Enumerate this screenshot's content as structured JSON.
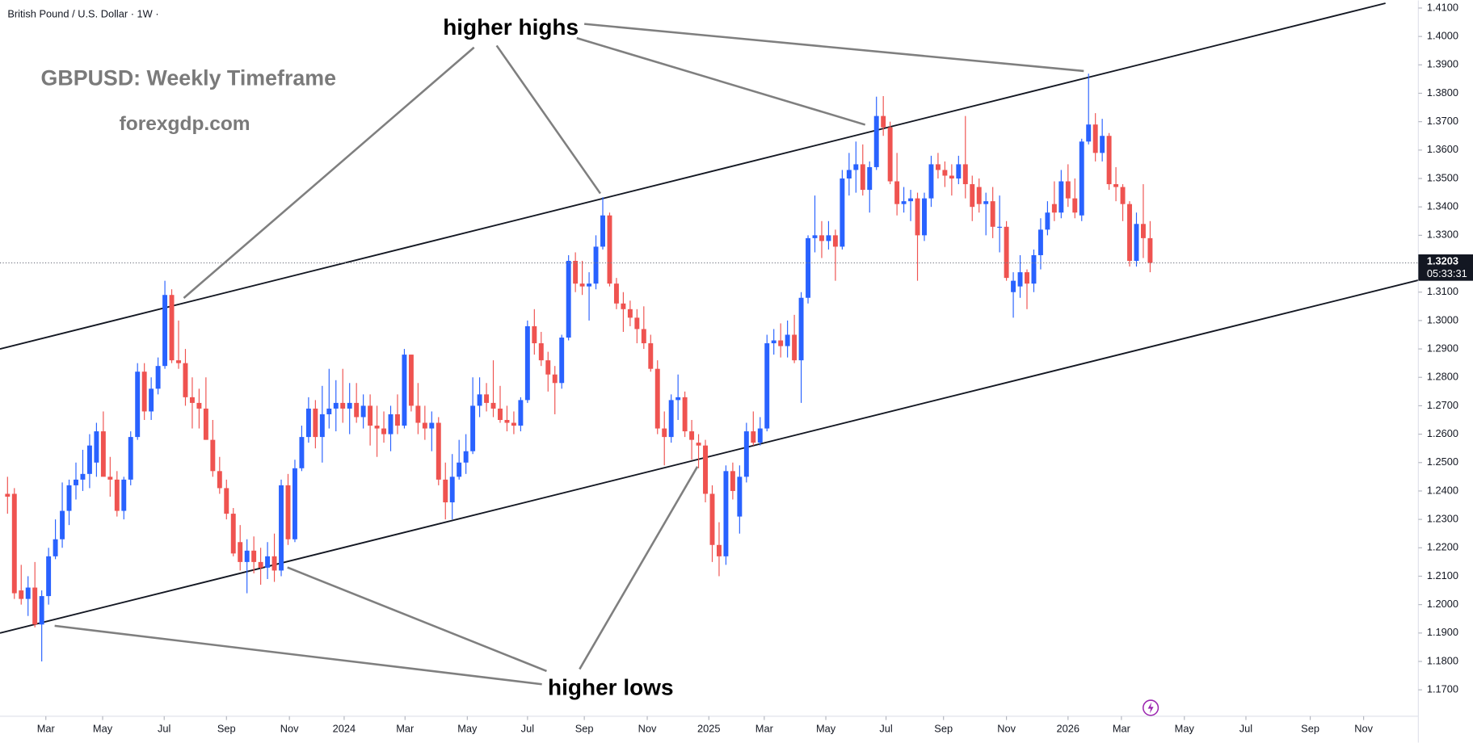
{
  "chart_data": {
    "type": "candlestick",
    "symbol": "British Pound / U.S. Dollar · 1W ·",
    "title": "GBPUSD: Weekly Timeframe",
    "subtitle": "forexgdp.com",
    "annotations": [
      "higher highs",
      "higher lows"
    ],
    "up_color": "#2962ff",
    "down_color": "#ef5350",
    "last_price": {
      "value": 1.3203,
      "label": "1.3203"
    },
    "countdown": "05:33:31",
    "trendlines": [
      {
        "points": [
          [
            -1.1,
            1.29
          ],
          [
            201.4,
            1.4117
          ]
        ]
      },
      {
        "points": [
          [
            -1.1,
            1.19
          ],
          [
            206.2,
            1.3142
          ]
        ]
      }
    ],
    "xlim": [
      -1.1,
      206.2
    ],
    "xticks": [
      {
        "value": 5.6,
        "label": "Mar"
      },
      {
        "value": 13.9,
        "label": "May"
      },
      {
        "value": 22.9,
        "label": "Jul"
      },
      {
        "value": 32,
        "label": "Sep"
      },
      {
        "value": 41.2,
        "label": "Nov"
      },
      {
        "value": 49.2,
        "label": "2024"
      },
      {
        "value": 58.1,
        "label": "Mar"
      },
      {
        "value": 67.2,
        "label": "May"
      },
      {
        "value": 76,
        "label": "Jul"
      },
      {
        "value": 84.3,
        "label": "Sep"
      },
      {
        "value": 93.5,
        "label": "Nov"
      },
      {
        "value": 102.5,
        "label": "2025"
      },
      {
        "value": 110.6,
        "label": "Mar"
      },
      {
        "value": 119.6,
        "label": "May"
      },
      {
        "value": 128.4,
        "label": "Jul"
      },
      {
        "value": 136.8,
        "label": "Sep"
      },
      {
        "value": 146,
        "label": "Nov"
      },
      {
        "value": 155,
        "label": "2026"
      },
      {
        "value": 162.8,
        "label": "Mar"
      },
      {
        "value": 172,
        "label": "May"
      },
      {
        "value": 181,
        "label": "Jul"
      },
      {
        "value": 190.4,
        "label": "Sep"
      },
      {
        "value": 198.2,
        "label": "Nov"
      }
    ],
    "ylim": [
      1.1607,
      1.4127
    ],
    "yticks": [
      {
        "value": 1.17,
        "label": "1.1700"
      },
      {
        "value": 1.18,
        "label": "1.1800"
      },
      {
        "value": 1.19,
        "label": "1.1900"
      },
      {
        "value": 1.2,
        "label": "1.2000"
      },
      {
        "value": 1.21,
        "label": "1.2100"
      },
      {
        "value": 1.22,
        "label": "1.2200"
      },
      {
        "value": 1.23,
        "label": "1.2300"
      },
      {
        "value": 1.24,
        "label": "1.2400"
      },
      {
        "value": 1.25,
        "label": "1.2500"
      },
      {
        "value": 1.26,
        "label": "1.2600"
      },
      {
        "value": 1.27,
        "label": "1.2700"
      },
      {
        "value": 1.28,
        "label": "1.2800"
      },
      {
        "value": 1.29,
        "label": "1.2900"
      },
      {
        "value": 1.3,
        "label": "1.3000"
      },
      {
        "value": 1.31,
        "label": "1.3100"
      },
      {
        "value": 1.32,
        "label": "1.3200"
      },
      {
        "value": 1.33,
        "label": "1.3300"
      },
      {
        "value": 1.34,
        "label": "1.3400"
      },
      {
        "value": 1.35,
        "label": "1.3500"
      },
      {
        "value": 1.36,
        "label": "1.3600"
      },
      {
        "value": 1.37,
        "label": "1.3700"
      },
      {
        "value": 1.38,
        "label": "1.3800"
      },
      {
        "value": 1.39,
        "label": "1.3900"
      },
      {
        "value": 1.4,
        "label": "1.4000"
      },
      {
        "value": 1.41,
        "label": "1.4100"
      }
    ],
    "candles": [
      [
        1.239,
        1.245,
        1.232,
        1.238
      ],
      [
        1.239,
        1.241,
        1.202,
        1.204
      ],
      [
        1.205,
        1.214,
        1.2,
        1.202
      ],
      [
        1.202,
        1.21,
        1.196,
        1.206
      ],
      [
        1.206,
        1.215,
        1.192,
        1.193
      ],
      [
        1.193,
        1.205,
        1.18,
        1.203
      ],
      [
        1.203,
        1.22,
        1.2,
        1.217
      ],
      [
        1.217,
        1.23,
        1.216,
        1.223
      ],
      [
        1.223,
        1.243,
        1.22,
        1.233
      ],
      [
        1.233,
        1.244,
        1.228,
        1.242
      ],
      [
        1.242,
        1.25,
        1.237,
        1.244
      ],
      [
        1.244,
        1.2545,
        1.24,
        1.246
      ],
      [
        1.246,
        1.26,
        1.241,
        1.256
      ],
      [
        1.25,
        1.264,
        1.245,
        1.261
      ],
      [
        1.261,
        1.268,
        1.247,
        1.245
      ],
      [
        1.245,
        1.252,
        1.238,
        1.244
      ],
      [
        1.244,
        1.247,
        1.231,
        1.233
      ],
      [
        1.233,
        1.245,
        1.23,
        1.244
      ],
      [
        1.244,
        1.261,
        1.242,
        1.259
      ],
      [
        1.259,
        1.285,
        1.258,
        1.282
      ],
      [
        1.282,
        1.285,
        1.265,
        1.268
      ],
      [
        1.268,
        1.28,
        1.265,
        1.276
      ],
      [
        1.276,
        1.287,
        1.274,
        1.284
      ],
      [
        1.284,
        1.314,
        1.283,
        1.309
      ],
      [
        1.309,
        1.311,
        1.285,
        1.286
      ],
      [
        1.286,
        1.3,
        1.283,
        1.285
      ],
      [
        1.285,
        1.29,
        1.27,
        1.273
      ],
      [
        1.273,
        1.28,
        1.262,
        1.271
      ],
      [
        1.271,
        1.276,
        1.262,
        1.269
      ],
      [
        1.269,
        1.28,
        1.258,
        1.258
      ],
      [
        1.258,
        1.265,
        1.245,
        1.247
      ],
      [
        1.247,
        1.252,
        1.239,
        1.241
      ],
      [
        1.241,
        1.244,
        1.23,
        1.232
      ],
      [
        1.232,
        1.234,
        1.217,
        1.218
      ],
      [
        1.222,
        1.228,
        1.212,
        1.215
      ],
      [
        1.215,
        1.223,
        1.204,
        1.219
      ],
      [
        1.219,
        1.224,
        1.211,
        1.215
      ],
      [
        1.215,
        1.22,
        1.207,
        1.213
      ],
      [
        1.213,
        1.222,
        1.209,
        1.217
      ],
      [
        1.217,
        1.225,
        1.208,
        1.212
      ],
      [
        1.212,
        1.244,
        1.21,
        1.242
      ],
      [
        1.242,
        1.246,
        1.221,
        1.223
      ],
      [
        1.223,
        1.251,
        1.222,
        1.248
      ],
      [
        1.248,
        1.263,
        1.247,
        1.259
      ],
      [
        1.259,
        1.273,
        1.257,
        1.269
      ],
      [
        1.269,
        1.272,
        1.255,
        1.259
      ],
      [
        1.259,
        1.277,
        1.25,
        1.267
      ],
      [
        1.267,
        1.283,
        1.262,
        1.269
      ],
      [
        1.269,
        1.279,
        1.261,
        1.271
      ],
      [
        1.271,
        1.283,
        1.264,
        1.269
      ],
      [
        1.269,
        1.278,
        1.26,
        1.271
      ],
      [
        1.271,
        1.278,
        1.264,
        1.266
      ],
      [
        1.266,
        1.274,
        1.262,
        1.27
      ],
      [
        1.27,
        1.274,
        1.256,
        1.263
      ],
      [
        1.263,
        1.27,
        1.252,
        1.262
      ],
      [
        1.262,
        1.268,
        1.257,
        1.26
      ],
      [
        1.26,
        1.27,
        1.254,
        1.267
      ],
      [
        1.267,
        1.274,
        1.26,
        1.263
      ],
      [
        1.263,
        1.29,
        1.262,
        1.288
      ],
      [
        1.288,
        1.288,
        1.268,
        1.27
      ],
      [
        1.27,
        1.278,
        1.26,
        1.264
      ],
      [
        1.264,
        1.27,
        1.258,
        1.262
      ],
      [
        1.262,
        1.268,
        1.254,
        1.264
      ],
      [
        1.264,
        1.266,
        1.242,
        1.244
      ],
      [
        1.244,
        1.25,
        1.23,
        1.236
      ],
      [
        1.236,
        1.253,
        1.23,
        1.245
      ],
      [
        1.245,
        1.258,
        1.244,
        1.25
      ],
      [
        1.25,
        1.26,
        1.246,
        1.254
      ],
      [
        1.254,
        1.28,
        1.253,
        1.27
      ],
      [
        1.27,
        1.28,
        1.266,
        1.274
      ],
      [
        1.274,
        1.278,
        1.268,
        1.271
      ],
      [
        1.271,
        1.286,
        1.266,
        1.269
      ],
      [
        1.269,
        1.277,
        1.264,
        1.265
      ],
      [
        1.265,
        1.27,
        1.261,
        1.264
      ],
      [
        1.264,
        1.268,
        1.26,
        1.263
      ],
      [
        1.263,
        1.273,
        1.261,
        1.272
      ],
      [
        1.272,
        1.3,
        1.271,
        1.298
      ],
      [
        1.298,
        1.304,
        1.288,
        1.292
      ],
      [
        1.292,
        1.296,
        1.284,
        1.286
      ],
      [
        1.286,
        1.289,
        1.275,
        1.281
      ],
      [
        1.281,
        1.284,
        1.267,
        1.278
      ],
      [
        1.278,
        1.295,
        1.276,
        1.294
      ],
      [
        1.294,
        1.323,
        1.293,
        1.321
      ],
      [
        1.321,
        1.324,
        1.31,
        1.313
      ],
      [
        1.313,
        1.321,
        1.309,
        1.312
      ],
      [
        1.312,
        1.317,
        1.3,
        1.313
      ],
      [
        1.313,
        1.33,
        1.311,
        1.326
      ],
      [
        1.326,
        1.3434,
        1.325,
        1.337
      ],
      [
        1.337,
        1.338,
        1.312,
        1.313
      ],
      [
        1.313,
        1.315,
        1.304,
        1.306
      ],
      [
        1.306,
        1.31,
        1.296,
        1.304
      ],
      [
        1.304,
        1.307,
        1.298,
        1.301
      ],
      [
        1.301,
        1.304,
        1.292,
        1.297
      ],
      [
        1.297,
        1.305,
        1.29,
        1.292
      ],
      [
        1.292,
        1.295,
        1.282,
        1.283
      ],
      [
        1.283,
        1.286,
        1.26,
        1.262
      ],
      [
        1.262,
        1.268,
        1.249,
        1.259
      ],
      [
        1.259,
        1.274,
        1.257,
        1.272
      ],
      [
        1.272,
        1.281,
        1.265,
        1.273
      ],
      [
        1.273,
        1.275,
        1.259,
        1.261
      ],
      [
        1.261,
        1.265,
        1.251,
        1.258
      ],
      [
        1.257,
        1.26,
        1.248,
        1.256
      ],
      [
        1.256,
        1.258,
        1.236,
        1.239
      ],
      [
        1.239,
        1.242,
        1.215,
        1.221
      ],
      [
        1.221,
        1.229,
        1.21,
        1.217
      ],
      [
        1.217,
        1.249,
        1.214,
        1.247
      ],
      [
        1.247,
        1.25,
        1.237,
        1.24
      ],
      [
        1.231,
        1.249,
        1.225,
        1.245
      ],
      [
        1.245,
        1.264,
        1.243,
        1.261
      ],
      [
        1.261,
        1.268,
        1.256,
        1.257
      ],
      [
        1.257,
        1.266,
        1.256,
        1.262
      ],
      [
        1.262,
        1.295,
        1.261,
        1.292
      ],
      [
        1.292,
        1.297,
        1.288,
        1.293
      ],
      [
        1.293,
        1.299,
        1.287,
        1.291
      ],
      [
        1.291,
        1.3,
        1.287,
        1.295
      ],
      [
        1.295,
        1.302,
        1.285,
        1.286
      ],
      [
        1.286,
        1.31,
        1.271,
        1.308
      ],
      [
        1.308,
        1.33,
        1.306,
        1.329
      ],
      [
        1.329,
        1.344,
        1.324,
        1.33
      ],
      [
        1.33,
        1.335,
        1.322,
        1.328
      ],
      [
        1.328,
        1.335,
        1.325,
        1.33
      ],
      [
        1.33,
        1.332,
        1.314,
        1.326
      ],
      [
        1.326,
        1.353,
        1.325,
        1.35
      ],
      [
        1.35,
        1.359,
        1.344,
        1.353
      ],
      [
        1.353,
        1.363,
        1.345,
        1.355
      ],
      [
        1.355,
        1.362,
        1.344,
        1.346
      ],
      [
        1.346,
        1.356,
        1.338,
        1.354
      ],
      [
        1.354,
        1.3788,
        1.353,
        1.372
      ],
      [
        1.372,
        1.379,
        1.365,
        1.368
      ],
      [
        1.368,
        1.37,
        1.348,
        1.349
      ],
      [
        1.349,
        1.359,
        1.337,
        1.341
      ],
      [
        1.341,
        1.347,
        1.338,
        1.342
      ],
      [
        1.342,
        1.346,
        1.335,
        1.343
      ],
      [
        1.343,
        1.345,
        1.314,
        1.33
      ],
      [
        1.33,
        1.345,
        1.328,
        1.343
      ],
      [
        1.343,
        1.358,
        1.34,
        1.355
      ],
      [
        1.355,
        1.359,
        1.35,
        1.353
      ],
      [
        1.353,
        1.356,
        1.347,
        1.351
      ],
      [
        1.351,
        1.355,
        1.344,
        1.35
      ],
      [
        1.35,
        1.358,
        1.348,
        1.355
      ],
      [
        1.355,
        1.372,
        1.343,
        1.348
      ],
      [
        1.348,
        1.351,
        1.335,
        1.34
      ],
      [
        1.347,
        1.35,
        1.338,
        1.341
      ],
      [
        1.341,
        1.345,
        1.33,
        1.342
      ],
      [
        1.342,
        1.347,
        1.329,
        1.333
      ],
      [
        1.333,
        1.344,
        1.324,
        1.333
      ],
      [
        1.333,
        1.335,
        1.314,
        1.315
      ],
      [
        1.31,
        1.317,
        1.301,
        1.314
      ],
      [
        1.312,
        1.323,
        1.308,
        1.317
      ],
      [
        1.317,
        1.318,
        1.304,
        1.313
      ],
      [
        1.313,
        1.325,
        1.31,
        1.323
      ],
      [
        1.323,
        1.336,
        1.318,
        1.332
      ],
      [
        1.332,
        1.342,
        1.33,
        1.338
      ],
      [
        1.341,
        1.349,
        1.335,
        1.338
      ],
      [
        1.338,
        1.353,
        1.336,
        1.349
      ],
      [
        1.349,
        1.355,
        1.34,
        1.343
      ],
      [
        1.343,
        1.35,
        1.336,
        1.338
      ],
      [
        1.337,
        1.364,
        1.335,
        1.363
      ],
      [
        1.363,
        1.3869,
        1.362,
        1.369
      ],
      [
        1.369,
        1.373,
        1.356,
        1.359
      ],
      [
        1.359,
        1.371,
        1.356,
        1.365
      ],
      [
        1.365,
        1.366,
        1.346,
        1.348
      ],
      [
        1.348,
        1.354,
        1.342,
        1.347
      ],
      [
        1.347,
        1.348,
        1.335,
        1.341
      ],
      [
        1.341,
        1.342,
        1.319,
        1.321
      ],
      [
        1.321,
        1.338,
        1.319,
        1.334
      ],
      [
        1.334,
        1.348,
        1.322,
        1.329
      ],
      [
        1.329,
        1.335,
        1.317,
        1.3203
      ]
    ]
  }
}
